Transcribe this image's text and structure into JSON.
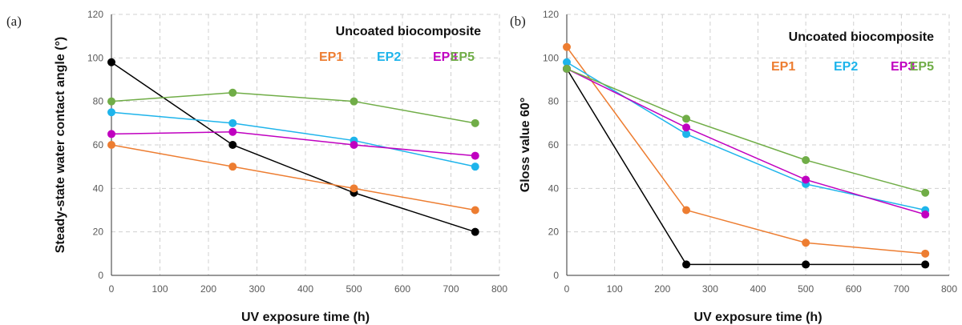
{
  "chart_data": [
    {
      "type": "line",
      "panel_label": "(a)",
      "xlabel": "UV exposure time (h)",
      "ylabel": "Steady-state water contact angle (°)",
      "xlim": [
        0,
        800
      ],
      "ylim": [
        0,
        120
      ],
      "xticks": [
        "0",
        "100",
        "200",
        "300",
        "400",
        "500",
        "600",
        "700",
        "800"
      ],
      "yticks": [
        "0",
        "20",
        "40",
        "60",
        "80",
        "100",
        "120"
      ],
      "grid": true,
      "legend_placement": "top-right",
      "x": [
        0,
        250,
        500,
        750
      ],
      "series": [
        {
          "name": "Uncoated biocomposite",
          "color": "#000000",
          "values": [
            98,
            60,
            38,
            20
          ]
        },
        {
          "name": "EP1",
          "color": "#ED7D31",
          "values": [
            60,
            50,
            40,
            30
          ]
        },
        {
          "name": "EP2",
          "color": "#1EB4EB",
          "values": [
            75,
            70,
            62,
            50
          ]
        },
        {
          "name": "EP3",
          "color": "#C000C0",
          "values": [
            65,
            66,
            60,
            55
          ]
        },
        {
          "name": "EP5",
          "color": "#70AD47",
          "values": [
            80,
            84,
            80,
            70
          ]
        }
      ]
    },
    {
      "type": "line",
      "panel_label": "(b)",
      "xlabel": "UV exposure time (h)",
      "ylabel": "Gloss value 60°",
      "xlim": [
        0,
        800
      ],
      "ylim": [
        0,
        120
      ],
      "xticks": [
        "0",
        "100",
        "200",
        "300",
        "400",
        "500",
        "600",
        "700",
        "800"
      ],
      "yticks": [
        "0",
        "20",
        "40",
        "60",
        "80",
        "100",
        "120"
      ],
      "grid": true,
      "legend_placement": "top-right",
      "x": [
        0,
        250,
        500,
        750
      ],
      "series": [
        {
          "name": "Uncoated biocomposite",
          "color": "#000000",
          "values": [
            95,
            5,
            5,
            5
          ]
        },
        {
          "name": "EP1",
          "color": "#ED7D31",
          "values": [
            105,
            30,
            15,
            10
          ]
        },
        {
          "name": "EP2",
          "color": "#1EB4EB",
          "values": [
            98,
            65,
            42,
            30
          ]
        },
        {
          "name": "EP3",
          "color": "#C000C0",
          "values": [
            95,
            68,
            44,
            28
          ]
        },
        {
          "name": "EP5",
          "color": "#70AD47",
          "values": [
            95,
            72,
            53,
            38
          ]
        }
      ]
    }
  ]
}
